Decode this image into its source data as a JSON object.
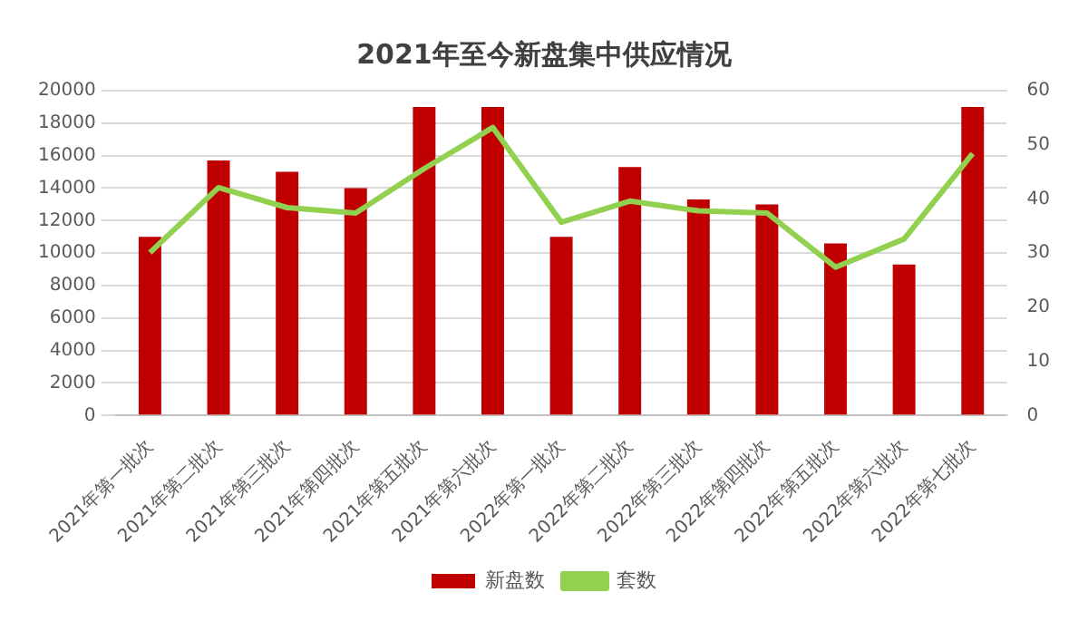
{
  "chart_data": {
    "type": "bar",
    "title": "2021年至今新盘集中供应情况",
    "categories": [
      "2021年第一批次",
      "2021年第二批次",
      "2021年第三批次",
      "2021年第四批次",
      "2021年第五批次",
      "2021年第六批次",
      "2022年第一批次",
      "2022年第二批次",
      "2022年第三批次",
      "2022年第四批次",
      "2022年第五批次",
      "2022年第六批次",
      "2022年第七批次"
    ],
    "series": [
      {
        "name": "新盘数",
        "color": "#c00000",
        "values": [
          11000,
          15700,
          15000,
          14000,
          19000,
          19000,
          11000,
          15300,
          13300,
          13000,
          10600,
          9300,
          19000
        ]
      },
      {
        "name": "套数",
        "type": "line",
        "axis": "y2",
        "color": "#92d050",
        "values": [
          30.1,
          42.1,
          38.4,
          37.4,
          45.6,
          53.2,
          35.7,
          39.6,
          37.8,
          37.4,
          27.4,
          32.6,
          48.4
        ]
      }
    ],
    "ylim": [
      0,
      20000
    ],
    "yticks": [
      0,
      2000,
      4000,
      6000,
      8000,
      10000,
      12000,
      14000,
      16000,
      18000,
      20000
    ],
    "y2lim": [
      0,
      60
    ],
    "y2ticks": [
      0,
      10,
      20,
      30,
      40,
      50,
      60
    ],
    "grid": "y",
    "legend": "bottom",
    "marker": "none"
  }
}
